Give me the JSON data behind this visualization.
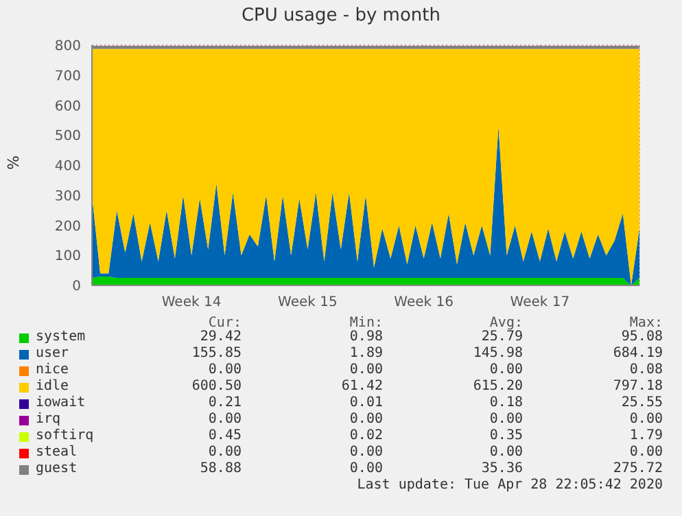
{
  "chart_data": {
    "type": "area",
    "stacked": true,
    "title": "CPU usage - by month",
    "ylabel": "%",
    "grid": true,
    "legend": "bottom",
    "categories": [
      null,
      null,
      null,
      null,
      null,
      null,
      null,
      null,
      null,
      null,
      null,
      null,
      "Week 14",
      null,
      null,
      null,
      null,
      null,
      null,
      null,
      null,
      null,
      null,
      null,
      null,
      null,
      "Week 15",
      null,
      null,
      null,
      null,
      null,
      null,
      null,
      null,
      null,
      null,
      null,
      null,
      null,
      "Week 16",
      null,
      null,
      null,
      null,
      null,
      null,
      null,
      null,
      null,
      null,
      null,
      null,
      null,
      "Week 17",
      null,
      null,
      null,
      null,
      null,
      null,
      null,
      null,
      null,
      null,
      null,
      null
    ],
    "ylim": [
      0,
      800
    ],
    "yticks": [
      0,
      100,
      200,
      300,
      400,
      500,
      600,
      700,
      800
    ],
    "series": [
      {
        "name": "system",
        "color": "#00cc00",
        "values": [
          25,
          30,
          30,
          25,
          25,
          25,
          25,
          25,
          25,
          25,
          25,
          25,
          25,
          25,
          25,
          25,
          25,
          25,
          25,
          25,
          25,
          25,
          25,
          25,
          25,
          25,
          25,
          25,
          25,
          25,
          25,
          25,
          25,
          25,
          25,
          25,
          25,
          25,
          25,
          25,
          25,
          25,
          25,
          25,
          25,
          25,
          25,
          25,
          25,
          25,
          25,
          25,
          25,
          25,
          25,
          25,
          25,
          25,
          25,
          25,
          25,
          25,
          25,
          25,
          25,
          0,
          25
        ]
      },
      {
        "name": "user",
        "color": "#0066b3",
        "values": [
          275,
          10,
          10,
          225,
          85,
          215,
          55,
          185,
          55,
          225,
          65,
          275,
          75,
          265,
          95,
          315,
          75,
          285,
          75,
          145,
          105,
          275,
          55,
          275,
          75,
          265,
          95,
          285,
          55,
          285,
          95,
          285,
          55,
          275,
          35,
          165,
          65,
          175,
          45,
          175,
          65,
          185,
          65,
          215,
          45,
          185,
          75,
          175,
          75,
          505,
          75,
          175,
          55,
          155,
          55,
          165,
          55,
          155,
          65,
          155,
          65,
          145,
          75,
          125,
          215,
          0,
          165
        ]
      },
      {
        "name": "nice",
        "color": "#ff8000",
        "values": [
          null,
          null,
          null,
          null,
          null,
          null,
          null,
          null,
          null,
          null,
          null,
          null,
          null,
          null,
          null,
          null,
          null,
          null,
          null,
          null,
          null,
          null,
          null,
          null,
          null,
          null,
          null,
          null,
          null,
          null,
          null,
          null,
          null,
          null,
          null,
          null,
          null,
          null,
          null,
          null,
          null,
          null,
          null,
          null,
          null,
          null,
          null,
          null,
          null,
          null,
          null,
          null,
          null,
          null,
          null,
          null,
          null,
          null,
          null,
          null,
          null,
          null,
          null,
          null,
          null,
          null,
          null
        ]
      },
      {
        "name": "idle",
        "color": "#ffcc00",
        "values": [
          488,
          748,
          748,
          538,
          678,
          548,
          708,
          578,
          708,
          538,
          698,
          488,
          688,
          498,
          668,
          448,
          688,
          478,
          688,
          618,
          658,
          488,
          708,
          488,
          688,
          498,
          668,
          478,
          708,
          478,
          668,
          478,
          708,
          488,
          728,
          598,
          698,
          588,
          718,
          588,
          698,
          578,
          698,
          548,
          718,
          578,
          688,
          588,
          688,
          258,
          688,
          588,
          708,
          608,
          708,
          598,
          708,
          608,
          698,
          608,
          698,
          618,
          688,
          638,
          548,
          788,
          598
        ]
      },
      {
        "name": "iowait",
        "color": "#330099",
        "values": [
          null,
          null,
          null,
          null,
          null,
          null,
          null,
          null,
          null,
          null,
          null,
          null,
          null,
          null,
          null,
          null,
          null,
          null,
          null,
          null,
          null,
          null,
          null,
          null,
          null,
          null,
          null,
          null,
          null,
          null,
          null,
          null,
          null,
          null,
          null,
          null,
          null,
          null,
          null,
          null,
          null,
          null,
          null,
          null,
          null,
          null,
          null,
          null,
          null,
          null,
          null,
          null,
          null,
          null,
          null,
          null,
          null,
          null,
          null,
          null,
          null,
          null,
          null,
          null,
          null,
          null,
          null
        ]
      },
      {
        "name": "irq",
        "color": "#990099",
        "values": [
          null,
          null,
          null,
          null,
          null,
          null,
          null,
          null,
          null,
          null,
          null,
          null,
          null,
          null,
          null,
          null,
          null,
          null,
          null,
          null,
          null,
          null,
          null,
          null,
          null,
          null,
          null,
          null,
          null,
          null,
          null,
          null,
          null,
          null,
          null,
          null,
          null,
          null,
          null,
          null,
          null,
          null,
          null,
          null,
          null,
          null,
          null,
          null,
          null,
          null,
          null,
          null,
          null,
          null,
          null,
          null,
          null,
          null,
          null,
          null,
          null,
          null,
          null,
          null,
          null,
          null,
          null
        ]
      },
      {
        "name": "softirq",
        "color": "#ccff00",
        "values": [
          null,
          null,
          null,
          null,
          null,
          null,
          null,
          null,
          null,
          null,
          null,
          null,
          null,
          null,
          null,
          null,
          null,
          null,
          null,
          null,
          null,
          null,
          null,
          null,
          null,
          null,
          null,
          null,
          null,
          null,
          null,
          null,
          null,
          null,
          null,
          null,
          null,
          null,
          null,
          null,
          null,
          null,
          null,
          null,
          null,
          null,
          null,
          null,
          null,
          null,
          null,
          null,
          null,
          null,
          null,
          null,
          null,
          null,
          null,
          null,
          null,
          null,
          null,
          null,
          null,
          null,
          null
        ]
      },
      {
        "name": "steal",
        "color": "#ff0000",
        "values": [
          null,
          null,
          null,
          null,
          null,
          null,
          null,
          null,
          null,
          null,
          null,
          null,
          null,
          null,
          null,
          null,
          null,
          null,
          null,
          null,
          null,
          null,
          null,
          null,
          null,
          null,
          null,
          null,
          null,
          null,
          null,
          null,
          null,
          null,
          null,
          null,
          null,
          null,
          null,
          null,
          null,
          null,
          null,
          null,
          null,
          null,
          null,
          null,
          null,
          null,
          null,
          null,
          null,
          null,
          null,
          null,
          null,
          null,
          null,
          null,
          null,
          null,
          null,
          null,
          null,
          null,
          null
        ]
      },
      {
        "name": "guest",
        "color": "#808080",
        "values": [
          10,
          10,
          10,
          10,
          10,
          10,
          10,
          10,
          10,
          10,
          10,
          10,
          10,
          10,
          10,
          10,
          10,
          10,
          10,
          10,
          10,
          10,
          10,
          10,
          10,
          10,
          10,
          10,
          10,
          10,
          10,
          10,
          10,
          10,
          10,
          10,
          10,
          10,
          10,
          10,
          10,
          10,
          10,
          10,
          10,
          10,
          10,
          10,
          10,
          10,
          10,
          10,
          10,
          10,
          10,
          10,
          10,
          10,
          10,
          10,
          10,
          10,
          10,
          10,
          10,
          10,
          10
        ]
      }
    ],
    "annotations": [
      "Cur:",
      "Min:",
      "Avg:",
      "Max:",
      "29.42",
      "0.98",
      "25.79",
      "95.08",
      "155.85",
      "1.89",
      "145.98",
      "684.19",
      "0.00",
      "0.00",
      "0.00",
      "0.08",
      "600.50",
      "61.42",
      "615.20",
      "797.18",
      "0.21",
      "0.01",
      "0.18",
      "25.55",
      "0.00",
      "0.00",
      "0.00",
      "0.00",
      "0.45",
      "0.02",
      "0.35",
      "1.79",
      "0.00",
      "0.00",
      "0.00",
      "0.00",
      "58.88",
      "0.00",
      "35.36",
      "275.72",
      "Last update: Tue Apr 28 22:05:42 2020"
    ]
  }
}
